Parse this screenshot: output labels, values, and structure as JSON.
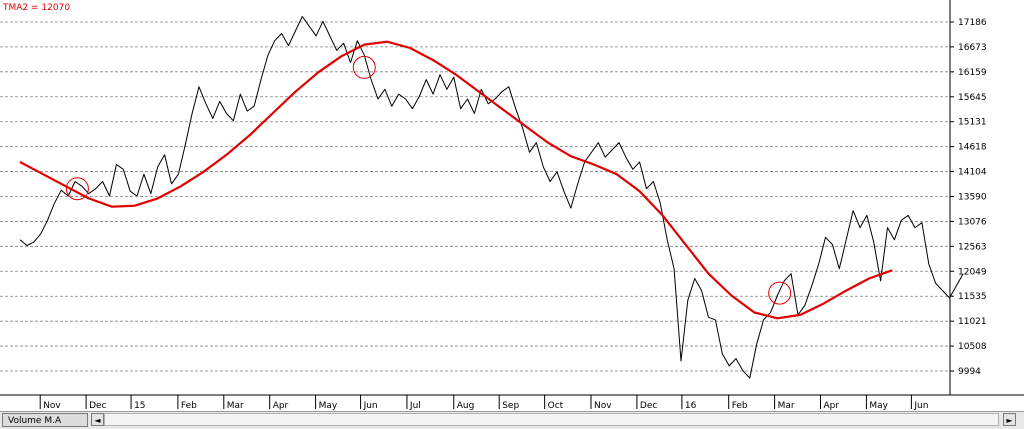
{
  "legend": {
    "label": "TMA2 = 12070"
  },
  "chart_data": {
    "type": "line",
    "title": "",
    "xlabel": "",
    "ylabel": "",
    "ylim": [
      9700,
      17450
    ],
    "y_ticks": [
      17186,
      16673,
      16159,
      15645,
      15131,
      14618,
      14104,
      13590,
      13076,
      12563,
      12049,
      11535,
      11021,
      10508,
      9994
    ],
    "x_ticks": [
      {
        "label": "Nov",
        "x": 0.44
      },
      {
        "label": "Dec",
        "x": 1.44
      },
      {
        "label": "15",
        "x": 2.42
      },
      {
        "label": "Feb",
        "x": 3.44
      },
      {
        "label": "Mar",
        "x": 4.44
      },
      {
        "label": "Apr",
        "x": 5.44
      },
      {
        "label": "May",
        "x": 6.44
      },
      {
        "label": "Jun",
        "x": 7.42
      },
      {
        "label": "Jul",
        "x": 8.43
      },
      {
        "label": "Aug",
        "x": 9.45
      },
      {
        "label": "Sep",
        "x": 10.44
      },
      {
        "label": "Oct",
        "x": 11.43
      },
      {
        "label": "Nov",
        "x": 12.44
      },
      {
        "label": "Dec",
        "x": 13.44
      },
      {
        "label": "16",
        "x": 14.42
      },
      {
        "label": "Feb",
        "x": 15.44
      },
      {
        "label": "Mar",
        "x": 16.44
      },
      {
        "label": "Apr",
        "x": 17.44
      },
      {
        "label": "May",
        "x": 18.44
      },
      {
        "label": "Jun",
        "x": 19.42
      }
    ],
    "xlim": [
      0,
      20.2
    ],
    "grid": true,
    "series": [
      {
        "name": "",
        "color": "#000000",
        "points": [
          [
            0.0,
            12700
          ],
          [
            0.15,
            12580
          ],
          [
            0.3,
            12650
          ],
          [
            0.45,
            12820
          ],
          [
            0.6,
            13100
          ],
          [
            0.75,
            13450
          ],
          [
            0.9,
            13720
          ],
          [
            1.05,
            13600
          ],
          [
            1.2,
            13900
          ],
          [
            1.35,
            13800
          ],
          [
            1.5,
            13650
          ],
          [
            1.65,
            13750
          ],
          [
            1.8,
            13900
          ],
          [
            1.95,
            13600
          ],
          [
            2.1,
            14250
          ],
          [
            2.25,
            14150
          ],
          [
            2.4,
            13700
          ],
          [
            2.55,
            13600
          ],
          [
            2.7,
            14050
          ],
          [
            2.85,
            13650
          ],
          [
            3.0,
            14200
          ],
          [
            3.15,
            14450
          ],
          [
            3.3,
            13850
          ],
          [
            3.45,
            14050
          ],
          [
            3.6,
            14650
          ],
          [
            3.75,
            15300
          ],
          [
            3.9,
            15850
          ],
          [
            4.05,
            15500
          ],
          [
            4.2,
            15200
          ],
          [
            4.35,
            15550
          ],
          [
            4.5,
            15300
          ],
          [
            4.65,
            15150
          ],
          [
            4.8,
            15700
          ],
          [
            4.95,
            15350
          ],
          [
            5.1,
            15450
          ],
          [
            5.25,
            16000
          ],
          [
            5.4,
            16500
          ],
          [
            5.55,
            16800
          ],
          [
            5.7,
            16950
          ],
          [
            5.85,
            16700
          ],
          [
            6.0,
            17000
          ],
          [
            6.15,
            17300
          ],
          [
            6.3,
            17100
          ],
          [
            6.45,
            16900
          ],
          [
            6.6,
            17200
          ],
          [
            6.75,
            16900
          ],
          [
            6.9,
            16600
          ],
          [
            7.05,
            16750
          ],
          [
            7.2,
            16350
          ],
          [
            7.35,
            16800
          ],
          [
            7.5,
            16500
          ],
          [
            7.65,
            16000
          ],
          [
            7.8,
            15600
          ],
          [
            7.95,
            15800
          ],
          [
            8.1,
            15450
          ],
          [
            8.25,
            15700
          ],
          [
            8.4,
            15600
          ],
          [
            8.55,
            15400
          ],
          [
            8.7,
            15650
          ],
          [
            8.85,
            16000
          ],
          [
            9.0,
            15700
          ],
          [
            9.15,
            16100
          ],
          [
            9.3,
            15800
          ],
          [
            9.45,
            16050
          ],
          [
            9.6,
            15400
          ],
          [
            9.75,
            15600
          ],
          [
            9.9,
            15300
          ],
          [
            10.05,
            15800
          ],
          [
            10.2,
            15500
          ],
          [
            10.35,
            15600
          ],
          [
            10.5,
            15750
          ],
          [
            10.65,
            15850
          ],
          [
            10.8,
            15400
          ],
          [
            10.95,
            15000
          ],
          [
            11.1,
            14500
          ],
          [
            11.25,
            14700
          ],
          [
            11.4,
            14200
          ],
          [
            11.55,
            13900
          ],
          [
            11.7,
            14100
          ],
          [
            11.85,
            13700
          ],
          [
            12.0,
            13350
          ],
          [
            12.15,
            13850
          ],
          [
            12.3,
            14300
          ],
          [
            12.45,
            14500
          ],
          [
            12.6,
            14700
          ],
          [
            12.75,
            14400
          ],
          [
            12.9,
            14550
          ],
          [
            13.05,
            14700
          ],
          [
            13.2,
            14400
          ],
          [
            13.35,
            14150
          ],
          [
            13.5,
            14300
          ],
          [
            13.65,
            13750
          ],
          [
            13.8,
            13900
          ],
          [
            13.95,
            13450
          ],
          [
            14.1,
            12700
          ],
          [
            14.25,
            12100
          ],
          [
            14.4,
            10200
          ],
          [
            14.55,
            11450
          ],
          [
            14.7,
            11900
          ],
          [
            14.85,
            11650
          ],
          [
            15.0,
            11100
          ],
          [
            15.15,
            11050
          ],
          [
            15.3,
            10350
          ],
          [
            15.45,
            10100
          ],
          [
            15.6,
            10250
          ],
          [
            15.75,
            10000
          ],
          [
            15.9,
            9850
          ],
          [
            16.05,
            10550
          ],
          [
            16.2,
            11050
          ],
          [
            16.35,
            11200
          ],
          [
            16.5,
            11550
          ],
          [
            16.65,
            11850
          ],
          [
            16.8,
            12000
          ],
          [
            16.95,
            11150
          ],
          [
            17.1,
            11350
          ],
          [
            17.25,
            11750
          ],
          [
            17.4,
            12200
          ],
          [
            17.55,
            12750
          ],
          [
            17.7,
            12600
          ],
          [
            17.85,
            12100
          ],
          [
            18.0,
            12700
          ],
          [
            18.15,
            13300
          ],
          [
            18.3,
            12950
          ],
          [
            18.45,
            13200
          ],
          [
            18.6,
            12650
          ],
          [
            18.75,
            11850
          ],
          [
            18.9,
            12950
          ],
          [
            19.05,
            12700
          ],
          [
            19.2,
            13100
          ],
          [
            19.35,
            13200
          ],
          [
            19.5,
            12950
          ],
          [
            19.65,
            13050
          ],
          [
            19.8,
            12200
          ],
          [
            19.95,
            11800
          ],
          [
            20.1,
            11650
          ],
          [
            20.25,
            11500
          ],
          [
            20.4,
            11750
          ],
          [
            20.55,
            12000
          ]
        ]
      },
      {
        "name": "TMA2",
        "color": "#e00000",
        "points": [
          [
            0.0,
            14300
          ],
          [
            0.5,
            14050
          ],
          [
            1.0,
            13800
          ],
          [
            1.5,
            13550
          ],
          [
            2.0,
            13380
          ],
          [
            2.5,
            13400
          ],
          [
            3.0,
            13550
          ],
          [
            3.5,
            13800
          ],
          [
            4.0,
            14100
          ],
          [
            4.5,
            14450
          ],
          [
            5.0,
            14850
          ],
          [
            5.5,
            15300
          ],
          [
            6.0,
            15750
          ],
          [
            6.5,
            16150
          ],
          [
            7.0,
            16480
          ],
          [
            7.5,
            16720
          ],
          [
            8.0,
            16780
          ],
          [
            8.5,
            16650
          ],
          [
            9.0,
            16400
          ],
          [
            9.5,
            16100
          ],
          [
            10.0,
            15750
          ],
          [
            10.5,
            15400
          ],
          [
            11.0,
            15050
          ],
          [
            11.5,
            14700
          ],
          [
            12.0,
            14420
          ],
          [
            12.5,
            14250
          ],
          [
            13.0,
            14050
          ],
          [
            13.5,
            13700
          ],
          [
            14.0,
            13200
          ],
          [
            14.5,
            12600
          ],
          [
            15.0,
            12000
          ],
          [
            15.5,
            11550
          ],
          [
            16.0,
            11200
          ],
          [
            16.5,
            11080
          ],
          [
            17.0,
            11150
          ],
          [
            17.5,
            11380
          ],
          [
            18.0,
            11650
          ],
          [
            18.5,
            11900
          ],
          [
            19.0,
            12070
          ]
        ]
      }
    ],
    "markers": [
      {
        "type": "circle",
        "color": "#e00000",
        "x": 1.25,
        "y": 13750
      },
      {
        "type": "circle",
        "color": "#e00000",
        "x": 7.5,
        "y": 16250
      },
      {
        "type": "circle",
        "color": "#e00000",
        "x": 16.55,
        "y": 11600
      }
    ]
  },
  "bottom_bar": {
    "tab_label": "Volume M.A",
    "left_arrow": "◄",
    "right_arrow": "►"
  },
  "colors": {
    "price": "#000000",
    "tma": "#e00000",
    "grid": "#808080"
  }
}
